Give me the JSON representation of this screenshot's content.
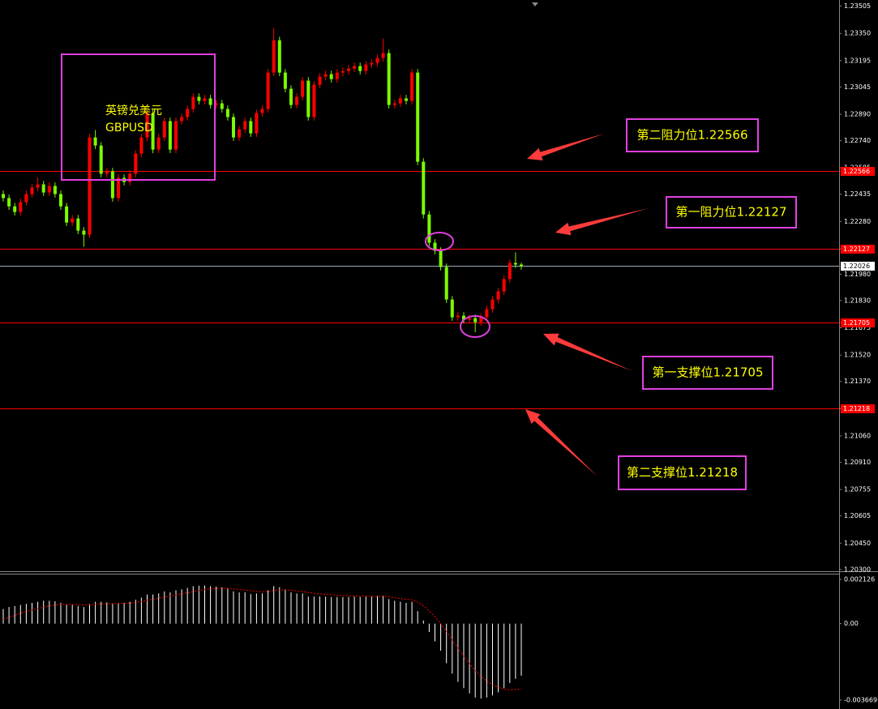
{
  "chart_data": [
    {
      "type": "candlestick",
      "title_lines": [
        "英镑兑美元",
        "GBPUSD"
      ],
      "annotations": [
        "第二阻力位1.22566",
        "第一阻力位1.22127",
        "第一支撑位1.21705",
        "第二支撑位1.21218"
      ],
      "up_color": "#ff0000",
      "down_color": "#7cfc00",
      "open": [
        1.22436,
        1.22413,
        1.22366,
        1.22334,
        1.2239,
        1.22436,
        1.22473,
        1.22491,
        1.22445,
        1.22482,
        1.22436,
        1.22366,
        1.22274,
        1.22297,
        1.22228,
        1.22205,
        1.22758,
        1.22712,
        1.22551,
        1.22565,
        1.22413,
        1.22528,
        1.22505,
        1.22551,
        1.22666,
        1.22758,
        1.22897,
        1.22689,
        1.22758,
        1.22851,
        1.22689,
        1.22851,
        1.22874,
        1.2292,
        1.22989,
        1.22966,
        1.2298,
        1.22943,
        1.22952,
        1.2292,
        1.22874,
        1.22758,
        1.22804,
        1.22851,
        1.22781,
        1.22897,
        1.2292,
        1.23127,
        1.23311,
        1.23127,
        1.23035,
        1.22943,
        1.22989,
        1.23081,
        1.22874,
        1.23058,
        1.23104,
        1.23118,
        1.2309,
        1.23127,
        1.23136,
        1.2315,
        1.23164,
        1.23136,
        1.23173,
        1.23182,
        1.2321,
        1.23238,
        1.22943,
        1.22952,
        1.2298,
        1.22966,
        1.23127,
        1.2262,
        1.2232,
        1.22159,
        1.22113,
        1.22021,
        1.21836,
        1.21735,
        1.21744,
        1.21721,
        1.2173,
        1.21707,
        1.21735,
        1.21781,
        1.21836,
        1.21882,
        1.21952,
        1.22044,
        1.22035
      ],
      "high": [
        1.22456,
        1.22433,
        1.22386,
        1.2241,
        1.22456,
        1.22493,
        1.22531,
        1.22511,
        1.22502,
        1.22502,
        1.22456,
        1.22386,
        1.22317,
        1.22317,
        1.22248,
        1.22778,
        1.228,
        1.22732,
        1.22585,
        1.22585,
        1.22548,
        1.22548,
        1.22571,
        1.22686,
        1.22778,
        1.22917,
        1.22917,
        1.22778,
        1.22871,
        1.22871,
        1.22871,
        1.22894,
        1.2294,
        1.23009,
        1.23009,
        1.23,
        1.23,
        1.22972,
        1.22972,
        1.2294,
        1.22894,
        1.22824,
        1.22871,
        1.22871,
        1.22917,
        1.2294,
        1.23147,
        1.23381,
        1.23331,
        1.23147,
        1.23055,
        1.23009,
        1.23101,
        1.23101,
        1.23078,
        1.23124,
        1.23138,
        1.23138,
        1.23147,
        1.23156,
        1.2317,
        1.23184,
        1.23184,
        1.23193,
        1.23202,
        1.2323,
        1.23321,
        1.23258,
        1.22972,
        1.23,
        1.23,
        1.23147,
        1.23147,
        1.2264,
        1.2234,
        1.22179,
        1.22133,
        1.22041,
        1.21856,
        1.21764,
        1.21764,
        1.2175,
        1.2175,
        1.21755,
        1.21801,
        1.21856,
        1.21902,
        1.21972,
        1.22064,
        1.22104,
        1.22046
      ],
      "low": [
        1.22393,
        1.22346,
        1.22314,
        1.22314,
        1.2237,
        1.22416,
        1.22453,
        1.22425,
        1.22425,
        1.22416,
        1.22346,
        1.22254,
        1.22254,
        1.22208,
        1.22136,
        1.22185,
        1.22692,
        1.22531,
        1.22531,
        1.22393,
        1.22393,
        1.22485,
        1.22485,
        1.22531,
        1.22646,
        1.22738,
        1.22669,
        1.22669,
        1.22738,
        1.22669,
        1.22669,
        1.22831,
        1.22854,
        1.229,
        1.22946,
        1.22946,
        1.22923,
        1.22923,
        1.229,
        1.22854,
        1.22738,
        1.22738,
        1.22784,
        1.22761,
        1.22761,
        1.22877,
        1.229,
        1.23107,
        1.23107,
        1.23015,
        1.22923,
        1.22923,
        1.22969,
        1.22854,
        1.22854,
        1.23038,
        1.23084,
        1.2307,
        1.2307,
        1.23107,
        1.23116,
        1.2313,
        1.23116,
        1.23116,
        1.23153,
        1.23162,
        1.2319,
        1.22923,
        1.22923,
        1.22932,
        1.22946,
        1.22946,
        1.226,
        1.22297,
        1.22139,
        1.22093,
        1.22001,
        1.21816,
        1.21715,
        1.21715,
        1.21701,
        1.21701,
        1.2165,
        1.21687,
        1.21715,
        1.21761,
        1.21816,
        1.21862,
        1.21932,
        1.22015,
        1.22006
      ],
      "close": [
        1.22413,
        1.22366,
        1.22334,
        1.2239,
        1.22436,
        1.22473,
        1.22491,
        1.22445,
        1.22482,
        1.22436,
        1.22366,
        1.22274,
        1.22297,
        1.22228,
        1.22205,
        1.22758,
        1.22712,
        1.22551,
        1.22565,
        1.22413,
        1.22528,
        1.22505,
        1.22551,
        1.22666,
        1.22758,
        1.22897,
        1.22689,
        1.22758,
        1.22851,
        1.22689,
        1.22851,
        1.22874,
        1.2292,
        1.22989,
        1.22966,
        1.2298,
        1.22943,
        1.22952,
        1.2292,
        1.22874,
        1.22758,
        1.22804,
        1.22851,
        1.22781,
        1.22897,
        1.2292,
        1.23127,
        1.23311,
        1.23127,
        1.23035,
        1.22943,
        1.22989,
        1.23081,
        1.22874,
        1.23058,
        1.23104,
        1.23118,
        1.2309,
        1.23127,
        1.23136,
        1.2315,
        1.23164,
        1.23136,
        1.23173,
        1.23182,
        1.2321,
        1.23238,
        1.22943,
        1.22952,
        1.2298,
        1.22966,
        1.23127,
        1.2262,
        1.2232,
        1.22159,
        1.22113,
        1.22021,
        1.21836,
        1.21735,
        1.21744,
        1.21721,
        1.2173,
        1.21707,
        1.21735,
        1.21781,
        1.21836,
        1.21882,
        1.21952,
        1.22044,
        1.22035,
        1.22026
      ],
      "levels": [
        1.22566,
        1.22127,
        1.21705,
        1.21218
      ],
      "level_color": "#ff0000",
      "current_price": 1.22026,
      "ylim": [
        1.2029,
        1.2354
      ],
      "yticks": [
        1.23505,
        {
          "value": 1.2335,
          "label": "1.23350"
        },
        1.23195,
        1.23045,
        {
          "value": 1.2289,
          "label": "1.22890"
        },
        {
          "value": 1.2274,
          "label": "1.22740"
        },
        1.22585,
        1.22435,
        {
          "value": 1.2228,
          "label": "1.22280"
        },
        1.22125,
        {
          "value": 1.2198,
          "label": "1.21980"
        },
        {
          "value": 1.2183,
          "label": "1.21830"
        },
        1.21675,
        {
          "value": 1.2152,
          "label": "1.21520"
        },
        {
          "value": 1.2137,
          "label": "1.21370"
        },
        1.21215,
        {
          "value": 1.2106,
          "label": "1.21060"
        },
        {
          "value": 1.2091,
          "label": "1.20910"
        },
        1.20755,
        1.20605,
        {
          "value": 1.2045,
          "label": "1.20450"
        },
        {
          "value": 1.203,
          "label": "1.20300"
        }
      ]
    },
    {
      "type": "macd",
      "histogram_color": "#ffffff",
      "signal_color": "#ff0000",
      "histogram": [
        0.0007,
        0.0008,
        0.00085,
        0.0009,
        0.00095,
        0.001,
        0.00105,
        0.0011,
        0.0011,
        0.00108,
        0.001,
        0.00092,
        0.0009,
        0.00085,
        0.0008,
        0.00095,
        0.00105,
        0.00105,
        0.00102,
        0.00098,
        0.001,
        0.001,
        0.00105,
        0.00115,
        0.00125,
        0.0014,
        0.0014,
        0.00145,
        0.00155,
        0.0015,
        0.0016,
        0.00165,
        0.00172,
        0.0018,
        0.00182,
        0.00183,
        0.0018,
        0.00178,
        0.00175,
        0.00168,
        0.00155,
        0.0015,
        0.0015,
        0.00142,
        0.00145,
        0.00145,
        0.0016,
        0.0018,
        0.00175,
        0.00165,
        0.0015,
        0.00145,
        0.00145,
        0.0013,
        0.0013,
        0.0013,
        0.0013,
        0.00128,
        0.00128,
        0.00128,
        0.00128,
        0.0013,
        0.00128,
        0.0013,
        0.0013,
        0.00132,
        0.00135,
        0.00118,
        0.0011,
        0.00105,
        0.001,
        0.00105,
        0.0006,
        0.00015,
        -0.0004,
        -0.00085,
        -0.0013,
        -0.0019,
        -0.0024,
        -0.0028,
        -0.0031,
        -0.00335,
        -0.00355,
        -0.0036,
        -0.00355,
        -0.00345,
        -0.0033,
        -0.0031,
        -0.00285,
        -0.00265,
        -0.0025
      ],
      "signal": [
        0.0002,
        0.0003,
        0.0004,
        0.0005,
        0.00058,
        0.00065,
        0.00072,
        0.0008,
        0.00086,
        0.0009,
        0.00092,
        0.00092,
        0.00092,
        0.00091,
        0.0009,
        0.00091,
        0.00093,
        0.00095,
        0.00096,
        0.00096,
        0.00097,
        0.00098,
        0.00099,
        0.00102,
        0.00106,
        0.00112,
        0.00117,
        0.00122,
        0.00128,
        0.00132,
        0.00138,
        0.00143,
        0.00148,
        0.00154,
        0.00159,
        0.00164,
        0.00167,
        0.00169,
        0.0017,
        0.0017,
        0.00167,
        0.00164,
        0.00161,
        0.00158,
        0.00155,
        0.00153,
        0.00154,
        0.00159,
        0.00162,
        0.00163,
        0.0016,
        0.00157,
        0.00154,
        0.0015,
        0.00146,
        0.00143,
        0.00141,
        0.00139,
        0.00137,
        0.00135,
        0.00134,
        0.00133,
        0.00132,
        0.00132,
        0.00131,
        0.00131,
        0.00132,
        0.00129,
        0.00125,
        0.00121,
        0.00117,
        0.00115,
        0.00104,
        0.00086,
        0.00061,
        0.00032,
        0.0,
        -0.00038,
        -0.00078,
        -0.00118,
        -0.00157,
        -0.00192,
        -0.00225,
        -0.00253,
        -0.00276,
        -0.00294,
        -0.00307,
        -0.00315,
        -0.00318,
        -0.00317,
        -0.00314
      ],
      "ylim": [
        -0.0041,
        0.0024
      ],
      "yticks": [
        0.002126,
        {
          "value": 0,
          "label": "0.00"
        },
        -0.003669
      ]
    }
  ]
}
